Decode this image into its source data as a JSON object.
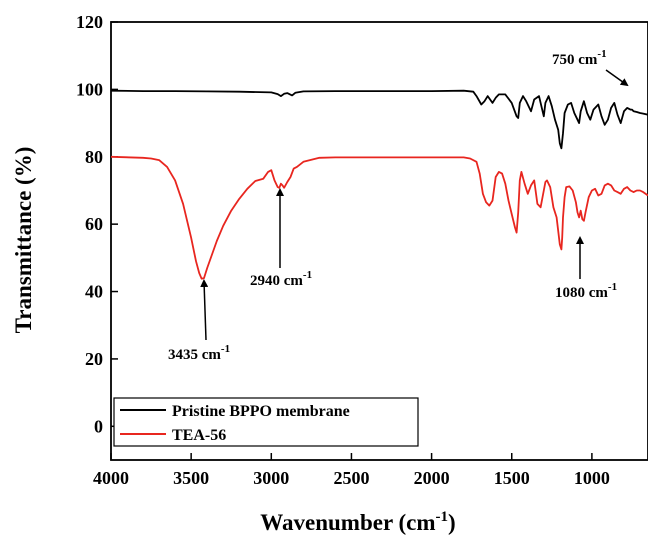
{
  "chart_data": {
    "type": "line",
    "xlabel": "Wavenumber (cm",
    "xlabel_sup": "-1",
    "xlabel_close": ")",
    "ylabel": "Transmittance (%)",
    "xlim": [
      4000,
      650
    ],
    "ylim": [
      -10,
      120
    ],
    "x_ticks": [
      4000,
      3500,
      3000,
      2500,
      2000,
      1500,
      1000
    ],
    "y_ticks": [
      0,
      20,
      40,
      60,
      80,
      100,
      120
    ],
    "x_tick_labels": [
      "4000",
      "3500",
      "3000",
      "2500",
      "2000",
      "1500",
      "1000"
    ],
    "y_tick_labels": [
      "0",
      "20",
      "40",
      "60",
      "80",
      "100",
      "120"
    ],
    "grid": false,
    "legend_position": "bottom-left",
    "series": [
      {
        "name": "Pristine BPPO membrane",
        "color": "#000000",
        "x": [
          4000,
          3800,
          3600,
          3400,
          3200,
          3000,
          2960,
          2940,
          2920,
          2900,
          2870,
          2850,
          2800,
          2600,
          2400,
          2200,
          2000,
          1800,
          1740,
          1720,
          1690,
          1670,
          1650,
          1620,
          1600,
          1580,
          1540,
          1500,
          1470,
          1460,
          1450,
          1430,
          1410,
          1380,
          1360,
          1330,
          1310,
          1300,
          1290,
          1270,
          1250,
          1230,
          1210,
          1200,
          1190,
          1180,
          1170,
          1150,
          1130,
          1110,
          1090,
          1080,
          1070,
          1050,
          1030,
          1010,
          990,
          960,
          940,
          920,
          900,
          880,
          860,
          840,
          820,
          800,
          780,
          760,
          750,
          740,
          720,
          700,
          680,
          650
        ],
        "y": [
          99.6,
          99.5,
          99.5,
          99.4,
          99.3,
          99.1,
          98.6,
          98.0,
          98.7,
          98.9,
          98.2,
          99.0,
          99.4,
          99.5,
          99.5,
          99.5,
          99.5,
          99.6,
          99.3,
          98.0,
          95.5,
          96.5,
          98.0,
          96.0,
          97.5,
          98.5,
          98.5,
          96.0,
          92.0,
          91.5,
          96.0,
          98.0,
          96.5,
          93.5,
          97.0,
          98.0,
          94.0,
          92.0,
          96.0,
          98.0,
          95.0,
          91.0,
          88.0,
          84.0,
          82.5,
          87.0,
          93.0,
          95.5,
          96.0,
          93.0,
          91.0,
          90.0,
          93.5,
          96.5,
          93.0,
          91.0,
          94.0,
          95.5,
          92.0,
          89.5,
          91.0,
          94.5,
          96.0,
          92.5,
          90.0,
          93.5,
          94.5,
          94.0,
          94.0,
          93.5,
          93.3,
          93.0,
          92.8,
          92.5
        ]
      },
      {
        "name": "TEA-56",
        "color": "#e8261f",
        "x": [
          4000,
          3800,
          3750,
          3700,
          3650,
          3600,
          3550,
          3500,
          3470,
          3450,
          3435,
          3420,
          3400,
          3370,
          3340,
          3300,
          3250,
          3200,
          3150,
          3100,
          3050,
          3020,
          3000,
          2980,
          2960,
          2950,
          2940,
          2930,
          2920,
          2900,
          2880,
          2860,
          2840,
          2800,
          2700,
          2600,
          2400,
          2200,
          2000,
          1800,
          1760,
          1720,
          1700,
          1680,
          1660,
          1640,
          1620,
          1600,
          1580,
          1560,
          1540,
          1520,
          1500,
          1480,
          1470,
          1460,
          1450,
          1440,
          1420,
          1400,
          1380,
          1360,
          1340,
          1320,
          1300,
          1290,
          1280,
          1260,
          1240,
          1220,
          1210,
          1200,
          1190,
          1185,
          1180,
          1170,
          1160,
          1140,
          1120,
          1100,
          1090,
          1080,
          1070,
          1060,
          1050,
          1040,
          1020,
          1000,
          980,
          960,
          940,
          920,
          900,
          880,
          860,
          840,
          820,
          800,
          780,
          760,
          740,
          720,
          700,
          680,
          650
        ],
        "y": [
          80.0,
          79.7,
          79.5,
          79.0,
          77.0,
          73.0,
          66.0,
          56.0,
          49.0,
          45.5,
          43.8,
          44.0,
          47.0,
          51.0,
          55.0,
          59.5,
          64.0,
          67.5,
          70.5,
          72.8,
          73.5,
          75.5,
          76.0,
          73.0,
          71.0,
          70.8,
          72.0,
          71.5,
          70.8,
          72.5,
          74.0,
          76.5,
          77.0,
          78.5,
          79.7,
          79.8,
          79.8,
          79.8,
          79.8,
          79.8,
          79.5,
          78.5,
          75.0,
          69.0,
          66.5,
          65.5,
          67.0,
          74.0,
          75.5,
          75.0,
          72.0,
          67.0,
          63.0,
          59.0,
          57.5,
          63.5,
          73.0,
          75.5,
          72.0,
          69.0,
          71.5,
          73.0,
          66.0,
          65.0,
          70.0,
          72.5,
          73.0,
          71.0,
          65.0,
          62.0,
          58.0,
          54.0,
          52.5,
          56.0,
          62.0,
          68.0,
          71.0,
          71.2,
          70.0,
          66.5,
          63.5,
          62.0,
          64.0,
          61.5,
          61.0,
          63.5,
          68.0,
          70.0,
          70.5,
          68.5,
          69.0,
          71.5,
          72.0,
          71.5,
          70.0,
          69.5,
          69.0,
          70.5,
          71.0,
          70.0,
          69.5,
          70.0,
          70.0,
          69.5,
          68.5
        ]
      }
    ],
    "annotations": [
      {
        "label": "750 cm",
        "sup": "-1"
      },
      {
        "label": "2940 cm",
        "sup": "-1"
      },
      {
        "label": "3435 cm",
        "sup": "-1"
      },
      {
        "label": "1080 cm",
        "sup": "-1"
      }
    ]
  }
}
